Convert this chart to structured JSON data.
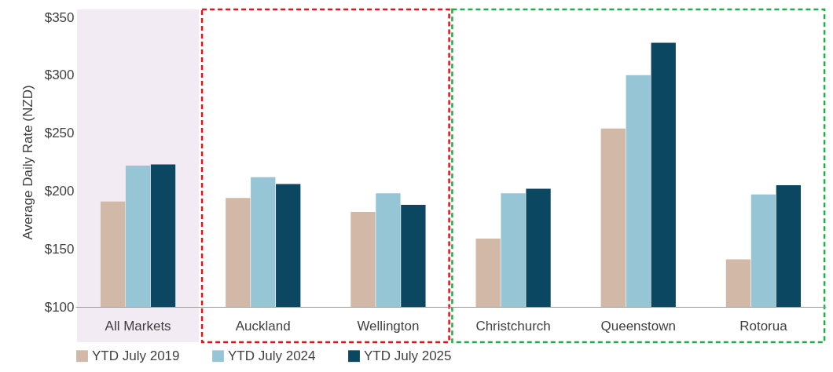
{
  "chart_data": {
    "type": "bar",
    "ylabel": "Average Daily Rate (NZD)",
    "categories": [
      "All Markets",
      "Auckland",
      "Wellington",
      "Christchurch",
      "Queenstown",
      "Rotorua"
    ],
    "series": [
      {
        "name": "YTD July 2019",
        "color": "#d1b8a7",
        "values": [
          191,
          194,
          182,
          159,
          254,
          141
        ]
      },
      {
        "name": "YTD July 2024",
        "color": "#96c6d6",
        "values": [
          222,
          212,
          198,
          198,
          300,
          197
        ]
      },
      {
        "name": "YTD July 2025",
        "color": "#0b4760",
        "values": [
          223,
          206,
          188,
          202,
          328,
          205
        ]
      }
    ],
    "ylim": [
      100,
      350
    ],
    "yticks": [
      {
        "value": 100,
        "label": "$100"
      },
      {
        "value": 150,
        "label": "$150"
      },
      {
        "value": 200,
        "label": "$200"
      },
      {
        "value": 250,
        "label": "$250"
      },
      {
        "value": 300,
        "label": "$300"
      },
      {
        "value": 350,
        "label": "$350"
      }
    ],
    "bands": [
      {
        "axis": "x",
        "from": "All Markets",
        "to": "All Markets",
        "color": "#f3ebf3"
      }
    ],
    "grid": false,
    "legend": "bottom"
  }
}
